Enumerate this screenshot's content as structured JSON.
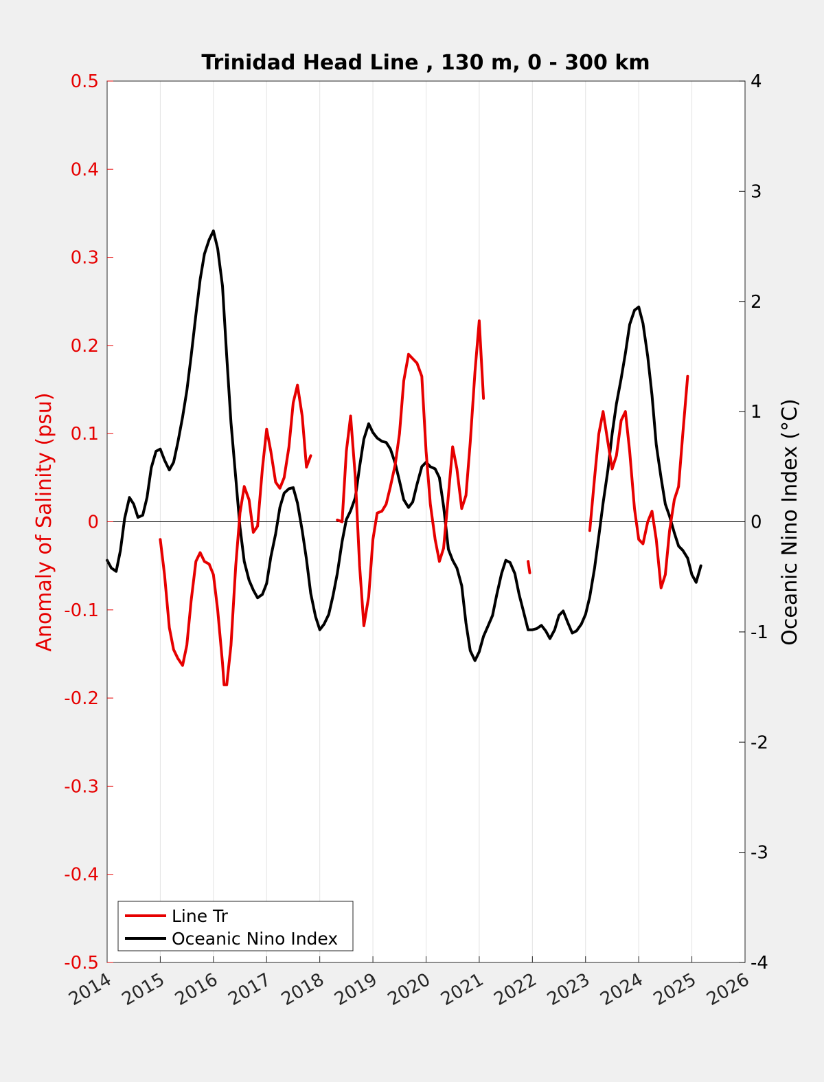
{
  "chart_data": {
    "type": "line",
    "title": "Trinidad Head Line , 130 m, 0 - 300 km",
    "xlabel": "",
    "ylabel_left": "Anomaly of Salinity (psu)",
    "ylabel_right": "Oceanic Nino Index (°C)",
    "xlim": [
      2014,
      2026
    ],
    "ylim_left": [
      -0.5,
      0.5
    ],
    "ylim_right": [
      -4,
      4
    ],
    "x_ticks": [
      "2014",
      "2015",
      "2016",
      "2017",
      "2018",
      "2019",
      "2020",
      "2021",
      "2022",
      "2023",
      "2024",
      "2025",
      "2026"
    ],
    "y_ticks_left": [
      "-0.5",
      "-0.4",
      "-0.3",
      "-0.2",
      "-0.1",
      "0",
      "0.1",
      "0.2",
      "0.3",
      "0.4",
      "0.5"
    ],
    "y_ticks_right": [
      "-4",
      "-3",
      "-2",
      "-1",
      "0",
      "1",
      "2",
      "3",
      "4"
    ],
    "grid": "vertical",
    "legend_position": "bottom-left",
    "colors": {
      "line_tr": "#e60000",
      "oni": "#000000",
      "left_axis": "#e60000",
      "right_axis": "#000000"
    },
    "series": [
      {
        "name": "Line Tr",
        "axis": "left",
        "segments": [
          [
            [
              2015.0,
              -0.02
            ],
            [
              2015.08,
              -0.06
            ],
            [
              2015.17,
              -0.12
            ],
            [
              2015.25,
              -0.145
            ],
            [
              2015.33,
              -0.155
            ],
            [
              2015.42,
              -0.163
            ],
            [
              2015.5,
              -0.14
            ],
            [
              2015.58,
              -0.09
            ],
            [
              2015.67,
              -0.045
            ],
            [
              2015.75,
              -0.035
            ],
            [
              2015.83,
              -0.045
            ],
            [
              2015.92,
              -0.048
            ],
            [
              2016.0,
              -0.06
            ],
            [
              2016.08,
              -0.1
            ],
            [
              2016.17,
              -0.16
            ],
            [
              2016.2,
              -0.185
            ],
            [
              2016.25,
              -0.185
            ],
            [
              2016.33,
              -0.14
            ],
            [
              2016.42,
              -0.05
            ],
            [
              2016.5,
              0.01
            ],
            [
              2016.58,
              0.04
            ],
            [
              2016.67,
              0.025
            ],
            [
              2016.75,
              -0.012
            ],
            [
              2016.83,
              -0.005
            ],
            [
              2016.92,
              0.06
            ],
            [
              2017.0,
              0.105
            ],
            [
              2017.08,
              0.08
            ],
            [
              2017.17,
              0.045
            ],
            [
              2017.25,
              0.038
            ],
            [
              2017.33,
              0.05
            ],
            [
              2017.42,
              0.085
            ],
            [
              2017.5,
              0.135
            ],
            [
              2017.58,
              0.155
            ],
            [
              2017.67,
              0.12
            ],
            [
              2017.75,
              0.062
            ],
            [
              2017.83,
              0.075
            ]
          ],
          [
            [
              2018.33,
              0.002
            ],
            [
              2018.42,
              0.0
            ],
            [
              2018.5,
              0.08
            ],
            [
              2018.58,
              0.12
            ],
            [
              2018.67,
              0.05
            ],
            [
              2018.75,
              -0.05
            ],
            [
              2018.83,
              -0.118
            ],
            [
              2018.92,
              -0.085
            ],
            [
              2019.0,
              -0.02
            ],
            [
              2019.08,
              0.01
            ],
            [
              2019.17,
              0.012
            ],
            [
              2019.25,
              0.02
            ],
            [
              2019.33,
              0.04
            ],
            [
              2019.42,
              0.065
            ],
            [
              2019.5,
              0.1
            ],
            [
              2019.58,
              0.16
            ],
            [
              2019.67,
              0.19
            ],
            [
              2019.75,
              0.185
            ],
            [
              2019.83,
              0.18
            ],
            [
              2019.92,
              0.165
            ],
            [
              2020.0,
              0.08
            ],
            [
              2020.08,
              0.02
            ],
            [
              2020.17,
              -0.02
            ],
            [
              2020.25,
              -0.045
            ],
            [
              2020.33,
              -0.03
            ],
            [
              2020.42,
              0.03
            ],
            [
              2020.5,
              0.085
            ],
            [
              2020.58,
              0.06
            ],
            [
              2020.67,
              0.015
            ],
            [
              2020.75,
              0.03
            ],
            [
              2020.83,
              0.09
            ],
            [
              2020.92,
              0.17
            ],
            [
              2021.0,
              0.228
            ],
            [
              2021.08,
              0.14
            ]
          ],
          [
            [
              2021.92,
              -0.045
            ],
            [
              2021.95,
              -0.058
            ]
          ],
          [
            [
              2023.08,
              -0.01
            ],
            [
              2023.17,
              0.05
            ],
            [
              2023.25,
              0.1
            ],
            [
              2023.33,
              0.125
            ],
            [
              2023.42,
              0.09
            ],
            [
              2023.5,
              0.06
            ],
            [
              2023.58,
              0.075
            ],
            [
              2023.67,
              0.115
            ],
            [
              2023.75,
              0.125
            ],
            [
              2023.83,
              0.08
            ],
            [
              2023.92,
              0.015
            ],
            [
              2024.0,
              -0.02
            ],
            [
              2024.08,
              -0.025
            ],
            [
              2024.17,
              0.0
            ],
            [
              2024.25,
              0.012
            ],
            [
              2024.33,
              -0.02
            ],
            [
              2024.42,
              -0.075
            ],
            [
              2024.5,
              -0.06
            ],
            [
              2024.58,
              -0.01
            ],
            [
              2024.67,
              0.025
            ],
            [
              2024.75,
              0.04
            ],
            [
              2024.83,
              0.1
            ],
            [
              2024.92,
              0.165
            ]
          ]
        ]
      },
      {
        "name": "Oceanic Nino Index",
        "axis": "right",
        "segments": [
          [
            [
              2014.0,
              -0.35
            ],
            [
              2014.08,
              -0.42
            ],
            [
              2014.17,
              -0.45
            ],
            [
              2014.25,
              -0.26
            ],
            [
              2014.33,
              0.03
            ],
            [
              2014.42,
              0.22
            ],
            [
              2014.5,
              0.16
            ],
            [
              2014.58,
              0.04
            ],
            [
              2014.67,
              0.06
            ],
            [
              2014.75,
              0.22
            ],
            [
              2014.83,
              0.49
            ],
            [
              2014.92,
              0.64
            ],
            [
              2015.0,
              0.66
            ],
            [
              2015.08,
              0.56
            ],
            [
              2015.17,
              0.47
            ],
            [
              2015.25,
              0.54
            ],
            [
              2015.33,
              0.72
            ],
            [
              2015.42,
              0.95
            ],
            [
              2015.5,
              1.19
            ],
            [
              2015.58,
              1.5
            ],
            [
              2015.67,
              1.88
            ],
            [
              2015.75,
              2.2
            ],
            [
              2015.83,
              2.43
            ],
            [
              2015.92,
              2.56
            ],
            [
              2016.0,
              2.64
            ],
            [
              2016.08,
              2.48
            ],
            [
              2016.17,
              2.14
            ],
            [
              2016.25,
              1.5
            ],
            [
              2016.33,
              0.9
            ],
            [
              2016.42,
              0.4
            ],
            [
              2016.5,
              -0.05
            ],
            [
              2016.58,
              -0.36
            ],
            [
              2016.67,
              -0.53
            ],
            [
              2016.75,
              -0.62
            ],
            [
              2016.83,
              -0.69
            ],
            [
              2016.92,
              -0.66
            ],
            [
              2017.0,
              -0.56
            ],
            [
              2017.08,
              -0.32
            ],
            [
              2017.17,
              -0.11
            ],
            [
              2017.25,
              0.13
            ],
            [
              2017.33,
              0.26
            ],
            [
              2017.42,
              0.3
            ],
            [
              2017.5,
              0.31
            ],
            [
              2017.58,
              0.17
            ],
            [
              2017.67,
              -0.08
            ],
            [
              2017.75,
              -0.34
            ],
            [
              2017.83,
              -0.65
            ],
            [
              2017.92,
              -0.86
            ],
            [
              2018.0,
              -0.98
            ],
            [
              2018.08,
              -0.93
            ],
            [
              2018.17,
              -0.84
            ],
            [
              2018.25,
              -0.67
            ],
            [
              2018.33,
              -0.47
            ],
            [
              2018.42,
              -0.18
            ],
            [
              2018.5,
              0.02
            ],
            [
              2018.58,
              0.1
            ],
            [
              2018.67,
              0.22
            ],
            [
              2018.75,
              0.5
            ],
            [
              2018.83,
              0.75
            ],
            [
              2018.92,
              0.89
            ],
            [
              2019.0,
              0.81
            ],
            [
              2019.08,
              0.76
            ],
            [
              2019.17,
              0.73
            ],
            [
              2019.25,
              0.72
            ],
            [
              2019.33,
              0.66
            ],
            [
              2019.42,
              0.53
            ],
            [
              2019.5,
              0.37
            ],
            [
              2019.58,
              0.2
            ],
            [
              2019.67,
              0.13
            ],
            [
              2019.75,
              0.18
            ],
            [
              2019.83,
              0.34
            ],
            [
              2019.92,
              0.5
            ],
            [
              2020.0,
              0.54
            ],
            [
              2020.08,
              0.5
            ],
            [
              2020.17,
              0.48
            ],
            [
              2020.25,
              0.4
            ],
            [
              2020.33,
              0.14
            ],
            [
              2020.42,
              -0.25
            ],
            [
              2020.5,
              -0.35
            ],
            [
              2020.58,
              -0.42
            ],
            [
              2020.67,
              -0.58
            ],
            [
              2020.75,
              -0.92
            ],
            [
              2020.83,
              -1.17
            ],
            [
              2020.92,
              -1.26
            ],
            [
              2021.0,
              -1.18
            ],
            [
              2021.08,
              -1.04
            ],
            [
              2021.17,
              -0.94
            ],
            [
              2021.25,
              -0.85
            ],
            [
              2021.33,
              -0.66
            ],
            [
              2021.42,
              -0.47
            ],
            [
              2021.5,
              -0.35
            ],
            [
              2021.58,
              -0.37
            ],
            [
              2021.67,
              -0.47
            ],
            [
              2021.75,
              -0.66
            ],
            [
              2021.83,
              -0.81
            ],
            [
              2021.92,
              -0.98
            ],
            [
              2022.0,
              -0.98
            ],
            [
              2022.08,
              -0.97
            ],
            [
              2022.17,
              -0.94
            ],
            [
              2022.25,
              -0.99
            ],
            [
              2022.33,
              -1.06
            ],
            [
              2022.42,
              -0.98
            ],
            [
              2022.5,
              -0.85
            ],
            [
              2022.58,
              -0.81
            ],
            [
              2022.67,
              -0.92
            ],
            [
              2022.75,
              -1.01
            ],
            [
              2022.83,
              -0.99
            ],
            [
              2022.92,
              -0.93
            ],
            [
              2023.0,
              -0.84
            ],
            [
              2023.08,
              -0.68
            ],
            [
              2023.17,
              -0.42
            ],
            [
              2023.25,
              -0.13
            ],
            [
              2023.33,
              0.17
            ],
            [
              2023.42,
              0.47
            ],
            [
              2023.5,
              0.8
            ],
            [
              2023.58,
              1.07
            ],
            [
              2023.67,
              1.3
            ],
            [
              2023.75,
              1.53
            ],
            [
              2023.83,
              1.79
            ],
            [
              2023.92,
              1.92
            ],
            [
              2024.0,
              1.95
            ],
            [
              2024.08,
              1.8
            ],
            [
              2024.17,
              1.5
            ],
            [
              2024.25,
              1.15
            ],
            [
              2024.33,
              0.7
            ],
            [
              2024.42,
              0.4
            ],
            [
              2024.5,
              0.16
            ],
            [
              2024.58,
              0.05
            ],
            [
              2024.67,
              -0.1
            ],
            [
              2024.75,
              -0.22
            ],
            [
              2024.83,
              -0.26
            ],
            [
              2024.92,
              -0.33
            ],
            [
              2025.0,
              -0.48
            ],
            [
              2025.08,
              -0.55
            ],
            [
              2025.17,
              -0.4
            ]
          ]
        ]
      }
    ]
  }
}
